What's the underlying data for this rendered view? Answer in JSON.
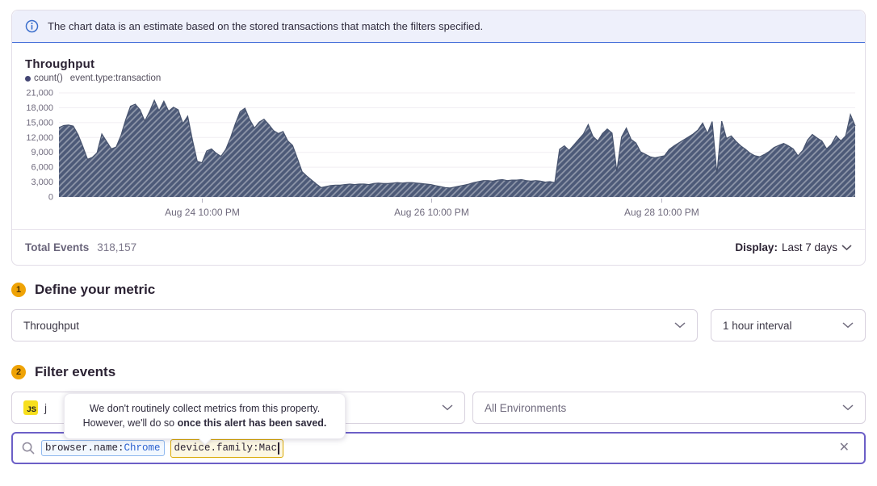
{
  "banner": {
    "text": "The chart data is an estimate based on the stored transactions that match the filters specified."
  },
  "chart": {
    "title": "Throughput",
    "legend_aggregate": "count()",
    "legend_query": "event.type:transaction"
  },
  "chart_data": {
    "type": "area",
    "title": "Throughput",
    "series_name": "count() event.type:transaction",
    "ylim": [
      0,
      21000
    ],
    "y_step": 3000,
    "y_ticks": [
      "0",
      "3,000",
      "6,000",
      "9,000",
      "12,000",
      "15,000",
      "18,000",
      "21,000"
    ],
    "x_ticks": [
      {
        "label": "Aug 24 10:00 PM",
        "pos": 0.18
      },
      {
        "label": "Aug 26 10:00 PM",
        "pos": 0.468
      },
      {
        "label": "Aug 28 10:00 PM",
        "pos": 0.757
      }
    ],
    "grid": true,
    "legend_position": "top-left",
    "fill_color": "#4d5a78",
    "line_color": "#47536e",
    "hatch": true,
    "values": [
      14000,
      14400,
      14500,
      14300,
      12600,
      10200,
      7600,
      8000,
      8900,
      12700,
      11200,
      9700,
      10100,
      12400,
      15600,
      18300,
      18700,
      17600,
      15300,
      17200,
      19500,
      17400,
      19300,
      17300,
      18100,
      17600,
      14800,
      16300,
      11500,
      7200,
      6900,
      9300,
      9700,
      8800,
      8200,
      9600,
      12000,
      14800,
      17200,
      17900,
      15600,
      13900,
      15100,
      15700,
      14600,
      13400,
      12800,
      13200,
      11300,
      10400,
      7800,
      5100,
      4200,
      3400,
      2600,
      1900,
      2100,
      2300,
      2400,
      2400,
      2500,
      2600,
      2500,
      2600,
      2600,
      2500,
      2700,
      2800,
      2700,
      2700,
      2800,
      2900,
      2800,
      2900,
      2900,
      2800,
      2700,
      2600,
      2500,
      2300,
      2100,
      1900,
      1800,
      2000,
      2200,
      2400,
      2600,
      2900,
      3100,
      3300,
      3300,
      3200,
      3400,
      3500,
      3300,
      3400,
      3400,
      3500,
      3300,
      3200,
      3300,
      3200,
      3000,
      3100,
      2900,
      9600,
      10300,
      9400,
      10500,
      11600,
      12700,
      14600,
      12200,
      11300,
      12800,
      13700,
      12900,
      5200,
      12100,
      13900,
      11600,
      10900,
      9100,
      8600,
      8100,
      7900,
      8100,
      8300,
      9600,
      10300,
      10900,
      11500,
      12100,
      12700,
      13500,
      14900,
      12800,
      15200,
      4600,
      15300,
      11800,
      12300,
      11200,
      10300,
      9600,
      8800,
      8300,
      8100,
      8600,
      9200,
      10000,
      10400,
      10800,
      10300,
      9700,
      8300,
      9400,
      11500,
      12600,
      11900,
      11300,
      9700,
      10600,
      12300,
      11300,
      12300,
      16600,
      14300
    ]
  },
  "chart_footer": {
    "total_label": "Total Events",
    "total_value": "318,157",
    "display_label": "Display:",
    "display_value": "Last 7 days"
  },
  "sections": {
    "metric": {
      "number": "1",
      "title": "Define your metric",
      "metric_select_value": "Throughput",
      "interval_select_value": "1 hour interval"
    },
    "filter": {
      "number": "2",
      "title": "Filter events",
      "platform_icon_text": "JS",
      "project_label": "j",
      "environment_select_value": "All Environments"
    }
  },
  "tooltip": {
    "line1": "We don't routinely collect metrics from this property.",
    "line2_normal": "However, we'll do so ",
    "line2_bold": "once this alert has been saved."
  },
  "search": {
    "tokens": [
      {
        "key": "browser.name:",
        "value": "Chrome"
      },
      {
        "key": "device.family:",
        "value": "Mac"
      }
    ]
  },
  "colors": {
    "banner_bg": "#eef0fb",
    "banner_border": "#3f6ad8",
    "badge_bg": "#efa306",
    "chart_fill": "#4d5a78",
    "focus_border": "#6c5fc7",
    "token_blue_border": "#8fb8ee",
    "token_yellow_border": "#d9a800",
    "js_icon_bg": "#f7df1e"
  }
}
